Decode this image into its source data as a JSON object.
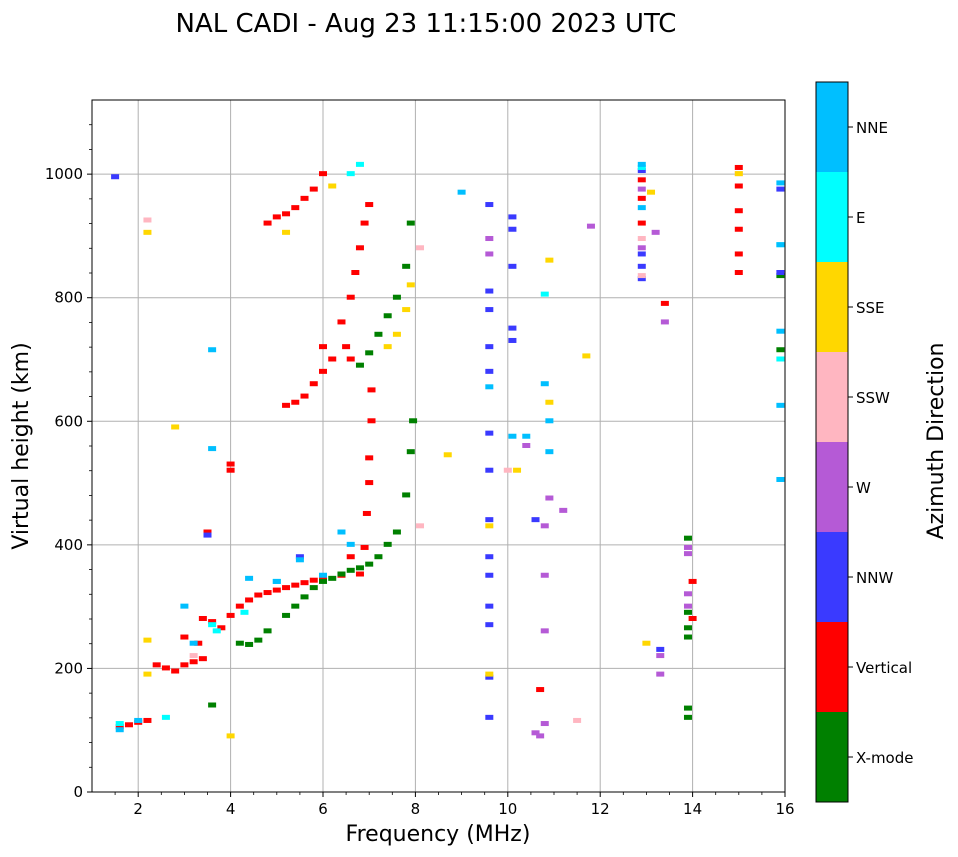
{
  "chart_data": {
    "type": "scatter",
    "title": "NAL CADI - Aug 23 11:15:00 2023 UTC",
    "xlabel": "Frequency (MHz)",
    "ylabel": "Virtual height (km)",
    "xlim": [
      1,
      16
    ],
    "ylim": [
      0,
      1120
    ],
    "xticks": [
      2,
      4,
      6,
      8,
      10,
      12,
      14,
      16
    ],
    "yticks": [
      0,
      200,
      400,
      600,
      800,
      1000
    ],
    "grid": true,
    "colorbar": {
      "label": "Azimuth Direction",
      "categories": [
        {
          "name": "X-mode",
          "color": "#008000"
        },
        {
          "name": "Vertical",
          "color": "#ff0000"
        },
        {
          "name": "NNW",
          "color": "#3a3aff"
        },
        {
          "name": "W",
          "color": "#b55ad6"
        },
        {
          "name": "SSW",
          "color": "#ffb6c1"
        },
        {
          "name": "SSE",
          "color": "#ffd700"
        },
        {
          "name": "E",
          "color": "#00ffff"
        },
        {
          "name": "NNE",
          "color": "#00bfff"
        }
      ]
    },
    "series": [
      {
        "name": "Vertical",
        "points": [
          [
            1.6,
            105
          ],
          [
            1.8,
            108
          ],
          [
            2.0,
            112
          ],
          [
            2.2,
            115
          ],
          [
            2.4,
            205
          ],
          [
            2.6,
            200
          ],
          [
            2.8,
            195
          ],
          [
            3.0,
            205
          ],
          [
            3.2,
            210
          ],
          [
            3.4,
            215
          ],
          [
            3.3,
            240
          ],
          [
            3.0,
            250
          ],
          [
            3.4,
            280
          ],
          [
            3.6,
            275
          ],
          [
            3.8,
            265
          ],
          [
            4.0,
            285
          ],
          [
            4.2,
            300
          ],
          [
            4.4,
            310
          ],
          [
            4.6,
            318
          ],
          [
            4.8,
            322
          ],
          [
            5.0,
            326
          ],
          [
            5.2,
            330
          ],
          [
            5.4,
            334
          ],
          [
            5.6,
            338
          ],
          [
            5.8,
            342
          ],
          [
            6.0,
            346
          ],
          [
            6.4,
            350
          ],
          [
            6.8,
            352
          ],
          [
            6.6,
            380
          ],
          [
            6.9,
            395
          ],
          [
            6.95,
            450
          ],
          [
            7.0,
            500
          ],
          [
            7.0,
            540
          ],
          [
            7.05,
            600
          ],
          [
            7.05,
            650
          ],
          [
            6.6,
            700
          ],
          [
            6.5,
            720
          ],
          [
            6.4,
            760
          ],
          [
            6.6,
            800
          ],
          [
            6.7,
            840
          ],
          [
            6.8,
            880
          ],
          [
            6.9,
            920
          ],
          [
            7.0,
            950
          ],
          [
            5.2,
            625
          ],
          [
            5.4,
            630
          ],
          [
            5.6,
            640
          ],
          [
            5.8,
            660
          ],
          [
            6.0,
            680
          ],
          [
            6.2,
            700
          ],
          [
            6.0,
            720
          ],
          [
            4.8,
            920
          ],
          [
            5.0,
            930
          ],
          [
            5.2,
            935
          ],
          [
            5.4,
            945
          ],
          [
            5.6,
            960
          ],
          [
            5.8,
            975
          ],
          [
            6.0,
            1000
          ],
          [
            3.5,
            420
          ],
          [
            4.0,
            520
          ],
          [
            4.0,
            530
          ],
          [
            13.4,
            790
          ],
          [
            15.0,
            840
          ],
          [
            15.0,
            870
          ],
          [
            15.0,
            910
          ],
          [
            15.0,
            940
          ],
          [
            15.0,
            980
          ],
          [
            15.0,
            1010
          ],
          [
            12.9,
            920
          ],
          [
            12.9,
            960
          ],
          [
            12.9,
            990
          ],
          [
            14.0,
            340
          ],
          [
            14.0,
            280
          ],
          [
            10.7,
            165
          ]
        ]
      },
      {
        "name": "X-mode",
        "points": [
          [
            4.2,
            240
          ],
          [
            4.4,
            238
          ],
          [
            4.6,
            245
          ],
          [
            4.8,
            260
          ],
          [
            5.2,
            285
          ],
          [
            5.4,
            300
          ],
          [
            5.6,
            315
          ],
          [
            5.8,
            330
          ],
          [
            6.0,
            340
          ],
          [
            6.2,
            345
          ],
          [
            6.4,
            352
          ],
          [
            6.6,
            358
          ],
          [
            6.8,
            362
          ],
          [
            7.0,
            368
          ],
          [
            7.2,
            380
          ],
          [
            7.4,
            400
          ],
          [
            7.6,
            420
          ],
          [
            7.8,
            480
          ],
          [
            7.9,
            550
          ],
          [
            7.95,
            600
          ],
          [
            6.8,
            690
          ],
          [
            7.0,
            710
          ],
          [
            7.2,
            740
          ],
          [
            7.4,
            770
          ],
          [
            7.6,
            800
          ],
          [
            7.8,
            850
          ],
          [
            7.9,
            920
          ],
          [
            3.6,
            140
          ],
          [
            13.9,
            120
          ],
          [
            13.9,
            135
          ],
          [
            13.9,
            250
          ],
          [
            13.9,
            265
          ],
          [
            13.9,
            290
          ],
          [
            13.9,
            410
          ],
          [
            15.9,
            835
          ],
          [
            15.9,
            715
          ]
        ]
      },
      {
        "name": "NNW",
        "points": [
          [
            1.5,
            995
          ],
          [
            3.5,
            415
          ],
          [
            5.5,
            380
          ],
          [
            9.6,
            120
          ],
          [
            9.6,
            185
          ],
          [
            9.6,
            270
          ],
          [
            9.6,
            300
          ],
          [
            9.6,
            350
          ],
          [
            9.6,
            380
          ],
          [
            9.6,
            440
          ],
          [
            9.6,
            520
          ],
          [
            9.6,
            580
          ],
          [
            9.6,
            680
          ],
          [
            9.6,
            720
          ],
          [
            9.6,
            780
          ],
          [
            9.6,
            810
          ],
          [
            9.6,
            950
          ],
          [
            10.1,
            910
          ],
          [
            10.1,
            930
          ],
          [
            10.1,
            850
          ],
          [
            10.1,
            750
          ],
          [
            10.1,
            730
          ],
          [
            10.6,
            440
          ],
          [
            13.3,
            230
          ],
          [
            15.9,
            975
          ],
          [
            15.9,
            840
          ],
          [
            12.9,
            830
          ],
          [
            12.9,
            850
          ],
          [
            12.9,
            870
          ],
          [
            12.9,
            1005
          ]
        ]
      },
      {
        "name": "W",
        "points": [
          [
            10.6,
            95
          ],
          [
            10.7,
            90
          ],
          [
            10.8,
            110
          ],
          [
            10.8,
            260
          ],
          [
            10.8,
            350
          ],
          [
            10.9,
            475
          ],
          [
            10.8,
            430
          ],
          [
            11.2,
            455
          ],
          [
            10.4,
            560
          ],
          [
            13.3,
            190
          ],
          [
            13.3,
            220
          ],
          [
            13.9,
            300
          ],
          [
            13.9,
            320
          ],
          [
            13.9,
            385
          ],
          [
            13.9,
            395
          ],
          [
            13.4,
            760
          ],
          [
            13.2,
            905
          ],
          [
            11.8,
            915
          ],
          [
            9.6,
            895
          ],
          [
            9.6,
            870
          ],
          [
            12.9,
            880
          ],
          [
            12.9,
            975
          ]
        ]
      },
      {
        "name": "SSW",
        "points": [
          [
            2.2,
            925
          ],
          [
            3.2,
            220
          ],
          [
            8.1,
            430
          ],
          [
            8.1,
            880
          ],
          [
            10.0,
            520
          ],
          [
            11.5,
            115
          ],
          [
            12.9,
            895
          ],
          [
            12.9,
            835
          ],
          [
            15.0,
            1000
          ]
        ]
      },
      {
        "name": "SSE",
        "points": [
          [
            2.2,
            245
          ],
          [
            2.2,
            190
          ],
          [
            2.2,
            905
          ],
          [
            2.8,
            590
          ],
          [
            4.0,
            90
          ],
          [
            5.2,
            905
          ],
          [
            6.2,
            980
          ],
          [
            7.4,
            720
          ],
          [
            7.6,
            740
          ],
          [
            7.8,
            780
          ],
          [
            7.9,
            820
          ],
          [
            8.7,
            545
          ],
          [
            9.6,
            190
          ],
          [
            9.6,
            430
          ],
          [
            10.2,
            520
          ],
          [
            10.9,
            630
          ],
          [
            10.9,
            860
          ],
          [
            11.7,
            705
          ],
          [
            13.0,
            240
          ],
          [
            13.1,
            970
          ],
          [
            15.0,
            1000
          ]
        ]
      },
      {
        "name": "E",
        "points": [
          [
            1.6,
            110
          ],
          [
            2.6,
            120
          ],
          [
            3.6,
            270
          ],
          [
            3.7,
            260
          ],
          [
            4.3,
            290
          ],
          [
            5.0,
            340
          ],
          [
            6.6,
            1000
          ],
          [
            6.8,
            1015
          ],
          [
            10.8,
            805
          ],
          [
            15.9,
            700
          ],
          [
            15.9,
            885
          ],
          [
            12.9,
            1010
          ]
        ]
      },
      {
        "name": "NNE",
        "points": [
          [
            1.6,
            100
          ],
          [
            2.0,
            115
          ],
          [
            3.0,
            300
          ],
          [
            3.2,
            240
          ],
          [
            3.6,
            555
          ],
          [
            3.6,
            715
          ],
          [
            4.4,
            345
          ],
          [
            5.0,
            340
          ],
          [
            5.5,
            375
          ],
          [
            6.0,
            350
          ],
          [
            6.4,
            420
          ],
          [
            6.6,
            400
          ],
          [
            9.0,
            970
          ],
          [
            9.6,
            655
          ],
          [
            10.1,
            575
          ],
          [
            10.4,
            575
          ],
          [
            10.9,
            550
          ],
          [
            10.9,
            600
          ],
          [
            10.8,
            660
          ],
          [
            15.9,
            505
          ],
          [
            15.9,
            625
          ],
          [
            15.9,
            745
          ],
          [
            15.9,
            885
          ],
          [
            15.9,
            985
          ],
          [
            12.9,
            1015
          ],
          [
            12.9,
            945
          ]
        ]
      }
    ]
  }
}
